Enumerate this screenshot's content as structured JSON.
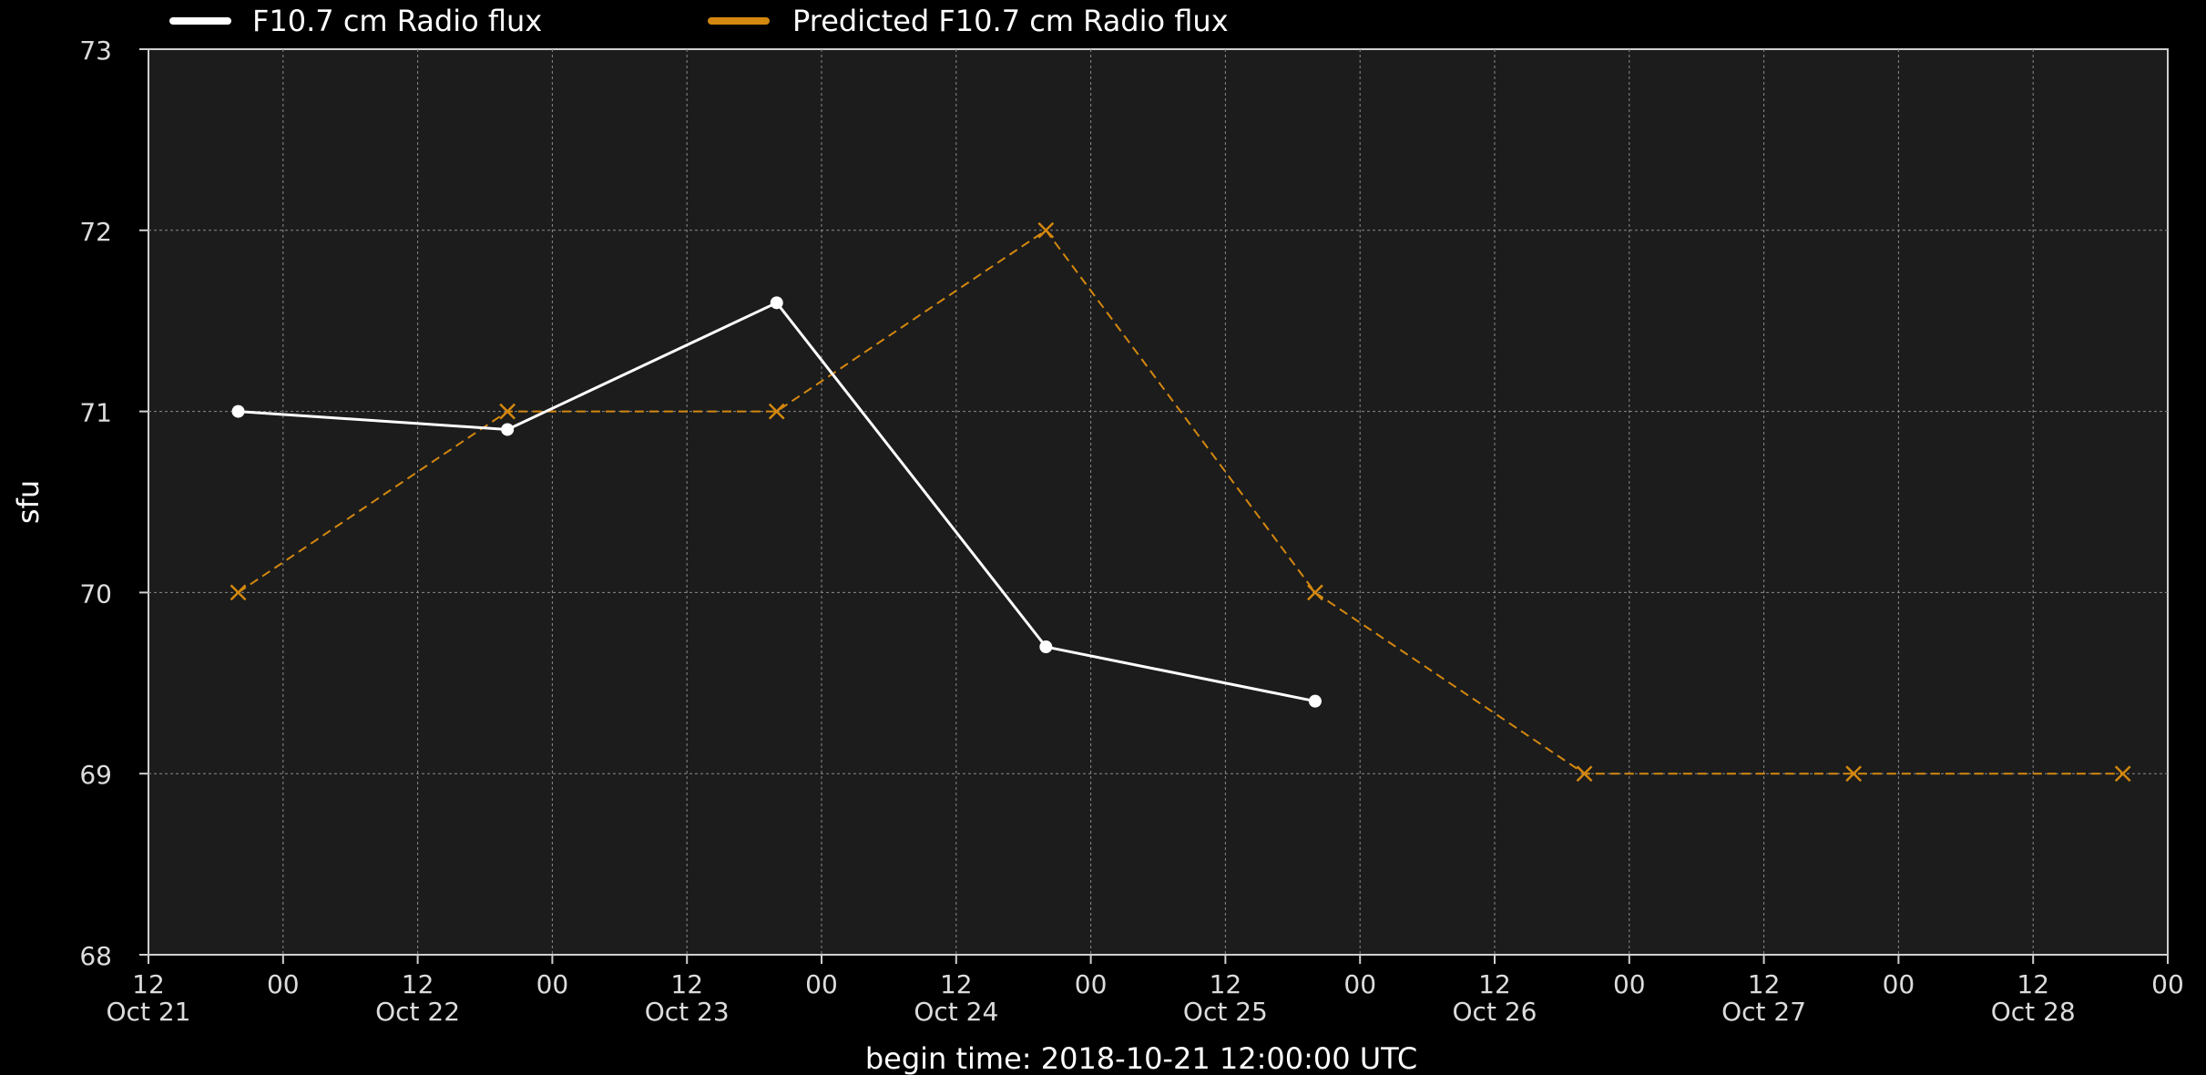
{
  "chart_data": {
    "type": "line",
    "title": "",
    "xlabel": "begin time: 2018-10-21 12:00:00 UTC",
    "ylabel": "sfu",
    "ylim": [
      68,
      73
    ],
    "yticks": [
      "68",
      "69",
      "70",
      "71",
      "72",
      "73"
    ],
    "xlim": [
      "2018-10-21 12:00",
      "2018-10-29 00:00"
    ],
    "xtick_hours": [
      "12",
      "00",
      "12",
      "00",
      "12",
      "00",
      "12",
      "00",
      "12",
      "00",
      "12",
      "00",
      "12",
      "00",
      "12",
      "00"
    ],
    "xtick_dates": [
      "Oct 21",
      "Oct 22",
      "Oct 23",
      "Oct 24",
      "Oct 25",
      "Oct 26",
      "Oct 27",
      "Oct 28"
    ],
    "grid": true,
    "legend": "top-left, above plot",
    "colors": {
      "background": "#000000",
      "plot_background": "#1c1c1c",
      "grid": "#8a8a8a",
      "axis": "#cfcfcf",
      "observed": "#ffffff",
      "predicted": "#d4880f"
    },
    "series": [
      {
        "name": "F10.7 cm Radio flux",
        "style": "solid",
        "marker": "dot",
        "x": [
          "2018-10-21 20:00",
          "2018-10-22 20:00",
          "2018-10-23 20:00",
          "2018-10-24 20:00",
          "2018-10-25 20:00"
        ],
        "values": [
          71.0,
          70.9,
          71.6,
          69.7,
          69.4
        ]
      },
      {
        "name": "Predicted F10.7 cm Radio flux",
        "style": "dashed",
        "marker": "x",
        "x": [
          "2018-10-21 20:00",
          "2018-10-22 20:00",
          "2018-10-23 20:00",
          "2018-10-24 20:00",
          "2018-10-25 20:00",
          "2018-10-26 20:00",
          "2018-10-27 20:00",
          "2018-10-28 20:00"
        ],
        "values": [
          70,
          71,
          71,
          72,
          70,
          69,
          69,
          69
        ]
      }
    ]
  }
}
